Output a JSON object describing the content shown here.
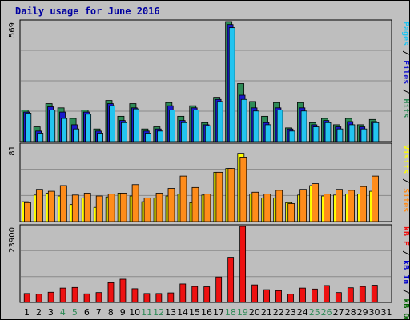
{
  "title": "Daily usage for June 2016",
  "colors": {
    "background": "#c0c0c0",
    "panel": "#bebebe",
    "gridline": "#8a8a8a",
    "hits": "#2e8b57",
    "files": "#1a1acd",
    "pages": "#22c4f0",
    "visits": "#ffff00",
    "sites": "#ff8c1a",
    "kbin": "#0000cc",
    "kbout": "#006400",
    "kbf": "#ee1111",
    "weekend_day": "#2e8b57",
    "weekday": "#000000",
    "ytick": "#000000"
  },
  "chart_data": [
    {
      "type": "bar",
      "panel": "hits",
      "yaxis_max_label": "569",
      "ylim": [
        0,
        569
      ],
      "right_label": [
        {
          "text": "Pages",
          "color": "#22c4f0"
        },
        {
          "text": " / ",
          "color": "#000000"
        },
        {
          "text": "Files",
          "color": "#1a1acd"
        },
        {
          "text": " / ",
          "color": "#000000"
        },
        {
          "text": "Hits",
          "color": "#2e8b57"
        }
      ],
      "categories": [
        "1",
        "2",
        "3",
        "4",
        "5",
        "6",
        "7",
        "8",
        "9",
        "10",
        "11",
        "12",
        "13",
        "14",
        "15",
        "16",
        "17",
        "18",
        "19",
        "20",
        "21",
        "22",
        "23",
        "24",
        "25",
        "26",
        "27",
        "28",
        "29",
        "30",
        "31"
      ],
      "series": [
        {
          "name": "Hits",
          "values": [
            150,
            70,
            180,
            160,
            110,
            150,
            60,
            195,
            120,
            180,
            60,
            70,
            185,
            120,
            170,
            90,
            210,
            570,
            275,
            190,
            120,
            185,
            65,
            185,
            90,
            110,
            80,
            110,
            80,
            105,
            0
          ]
        },
        {
          "name": "Files",
          "values": [
            140,
            50,
            165,
            140,
            80,
            140,
            50,
            180,
            100,
            160,
            50,
            60,
            170,
            100,
            160,
            80,
            200,
            555,
            220,
            160,
            90,
            160,
            60,
            160,
            80,
            100,
            70,
            95,
            70,
            95,
            0
          ]
        },
        {
          "name": "Pages",
          "values": [
            135,
            40,
            150,
            110,
            60,
            130,
            40,
            170,
            90,
            155,
            40,
            50,
            150,
            90,
            150,
            75,
            190,
            540,
            200,
            145,
            80,
            150,
            50,
            145,
            70,
            90,
            60,
            80,
            60,
            90,
            0
          ]
        }
      ]
    },
    {
      "type": "bar",
      "panel": "visits",
      "yaxis_max_label": "81",
      "ylim": [
        0,
        81
      ],
      "right_label": [
        {
          "text": "Visits",
          "color": "#ffff00"
        },
        {
          "text": " / ",
          "color": "#000000"
        },
        {
          "text": "Sites",
          "color": "#ff8c1a"
        }
      ],
      "categories": [
        "1",
        "2",
        "3",
        "4",
        "5",
        "6",
        "7",
        "8",
        "9",
        "10",
        "11",
        "12",
        "13",
        "14",
        "15",
        "16",
        "17",
        "18",
        "19",
        "20",
        "21",
        "22",
        "23",
        "24",
        "25",
        "26",
        "27",
        "28",
        "29",
        "30",
        "31"
      ],
      "series": [
        {
          "name": "Visits",
          "values": [
            21,
            28,
            30,
            27,
            18,
            25,
            15,
            26,
            30,
            27,
            21,
            25,
            27,
            29,
            20,
            28,
            52,
            56,
            72,
            29,
            25,
            25,
            20,
            28,
            38,
            27,
            28,
            29,
            29,
            32,
            0
          ]
        },
        {
          "name": "Sites",
          "values": [
            20,
            34,
            32,
            38,
            28,
            30,
            27,
            29,
            30,
            39,
            25,
            30,
            35,
            48,
            36,
            29,
            52,
            56,
            68,
            31,
            29,
            33,
            19,
            34,
            40,
            29,
            34,
            33,
            37,
            48,
            0
          ]
        }
      ]
    },
    {
      "type": "bar",
      "panel": "kbytes",
      "yaxis_max_label": "23900",
      "ylim": [
        0,
        23900
      ],
      "right_label": [
        {
          "text": "kB F",
          "color": "#ee1111"
        },
        {
          "text": " / ",
          "color": "#000000"
        },
        {
          "text": "kB In",
          "color": "#0000cc"
        },
        {
          "text": " / ",
          "color": "#000000"
        },
        {
          "text": "kB Out",
          "color": "#006400"
        }
      ],
      "categories": [
        "1",
        "2",
        "3",
        "4",
        "5",
        "6",
        "7",
        "8",
        "9",
        "10",
        "11",
        "12",
        "13",
        "14",
        "15",
        "16",
        "17",
        "18",
        "19",
        "20",
        "21",
        "22",
        "23",
        "24",
        "25",
        "26",
        "27",
        "28",
        "29",
        "30",
        "31"
      ],
      "series": [
        {
          "name": "kB F",
          "values": [
            2800,
            2600,
            3200,
            4500,
            4700,
            2700,
            3100,
            6200,
            7300,
            4300,
            2800,
            2800,
            3000,
            5800,
            5000,
            4900,
            8000,
            14200,
            24000,
            5500,
            4000,
            3700,
            2600,
            4500,
            4200,
            5300,
            3100,
            4600,
            5000,
            5400,
            0
          ]
        }
      ]
    }
  ],
  "xaxis": {
    "days": [
      {
        "label": "1",
        "weekend": false
      },
      {
        "label": "2",
        "weekend": false
      },
      {
        "label": "3",
        "weekend": false
      },
      {
        "label": "4",
        "weekend": true
      },
      {
        "label": "5",
        "weekend": true
      },
      {
        "label": "6",
        "weekend": false
      },
      {
        "label": "7",
        "weekend": false
      },
      {
        "label": "8",
        "weekend": false
      },
      {
        "label": "9",
        "weekend": false
      },
      {
        "label": "10",
        "weekend": false
      },
      {
        "label": "11",
        "weekend": true
      },
      {
        "label": "12",
        "weekend": true
      },
      {
        "label": "13",
        "weekend": false
      },
      {
        "label": "14",
        "weekend": false
      },
      {
        "label": "15",
        "weekend": false
      },
      {
        "label": "16",
        "weekend": false
      },
      {
        "label": "17",
        "weekend": false
      },
      {
        "label": "18",
        "weekend": true
      },
      {
        "label": "19",
        "weekend": true
      },
      {
        "label": "20",
        "weekend": false
      },
      {
        "label": "21",
        "weekend": false
      },
      {
        "label": "22",
        "weekend": false
      },
      {
        "label": "23",
        "weekend": false
      },
      {
        "label": "24",
        "weekend": false
      },
      {
        "label": "25",
        "weekend": true
      },
      {
        "label": "26",
        "weekend": true
      },
      {
        "label": "27",
        "weekend": false
      },
      {
        "label": "28",
        "weekend": false
      },
      {
        "label": "29",
        "weekend": false
      },
      {
        "label": "30",
        "weekend": false
      },
      {
        "label": "31",
        "weekend": false
      }
    ]
  }
}
